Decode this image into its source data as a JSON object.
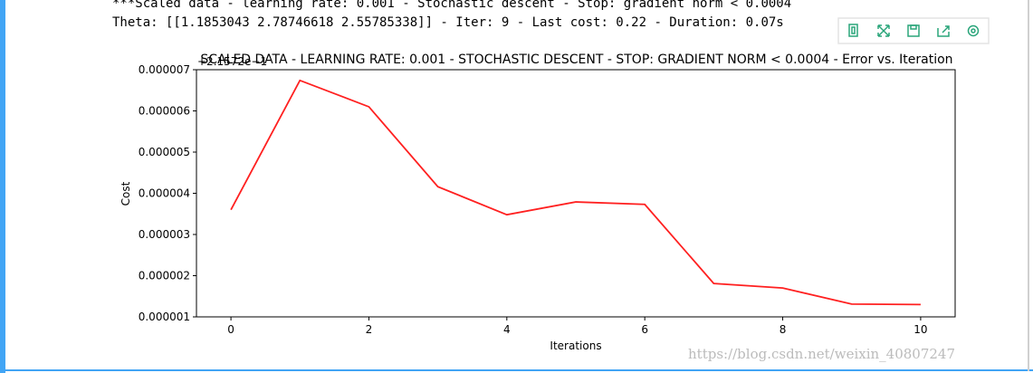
{
  "output_lines": [
    "***Scaled data - learning rate: 0.001 - Stochastic descent - Stop: gradient norm < 0.0004",
    "Theta: [[1.1853043  2.78746618 2.55785338]] - Iter: 9 - Last cost: 0.22 - Duration: 0.07s"
  ],
  "watermark": "https://blog.csdn.net/weixin_40807247",
  "chart_data": {
    "type": "line",
    "title": "SCALED DATA - LEARNING RATE: 0.001 - STOCHASTIC DESCENT - STOP: GRADIENT NORM < 0.0004 - Error vs. Iteration",
    "offset_text": "+2.1572e−1",
    "xlabel": "Iterations",
    "ylabel": "Cost",
    "x": [
      0,
      1,
      2,
      3,
      4,
      5,
      6,
      7,
      8,
      9,
      10
    ],
    "values": [
      3.6e-06,
      6.74e-06,
      6.1e-06,
      4.16e-06,
      3.48e-06,
      3.79e-06,
      3.73e-06,
      1.81e-06,
      1.7e-06,
      1.31e-06,
      1.3e-06
    ],
    "color": "#ff2020",
    "xlim": [
      -0.5,
      10.5
    ],
    "xticks": [
      0,
      2,
      4,
      6,
      8,
      10
    ],
    "ylim": [
      1e-06,
      7e-06
    ],
    "yticks": [
      {
        "value": 1e-06,
        "label": "0.000001"
      },
      {
        "value": 2e-06,
        "label": "0.000002"
      },
      {
        "value": 3e-06,
        "label": "0.000003"
      },
      {
        "value": 4e-06,
        "label": "0.000004"
      },
      {
        "value": 5e-06,
        "label": "0.000005"
      },
      {
        "value": 6e-06,
        "label": "0.000006"
      },
      {
        "value": 7e-06,
        "label": "0.000007"
      }
    ]
  }
}
